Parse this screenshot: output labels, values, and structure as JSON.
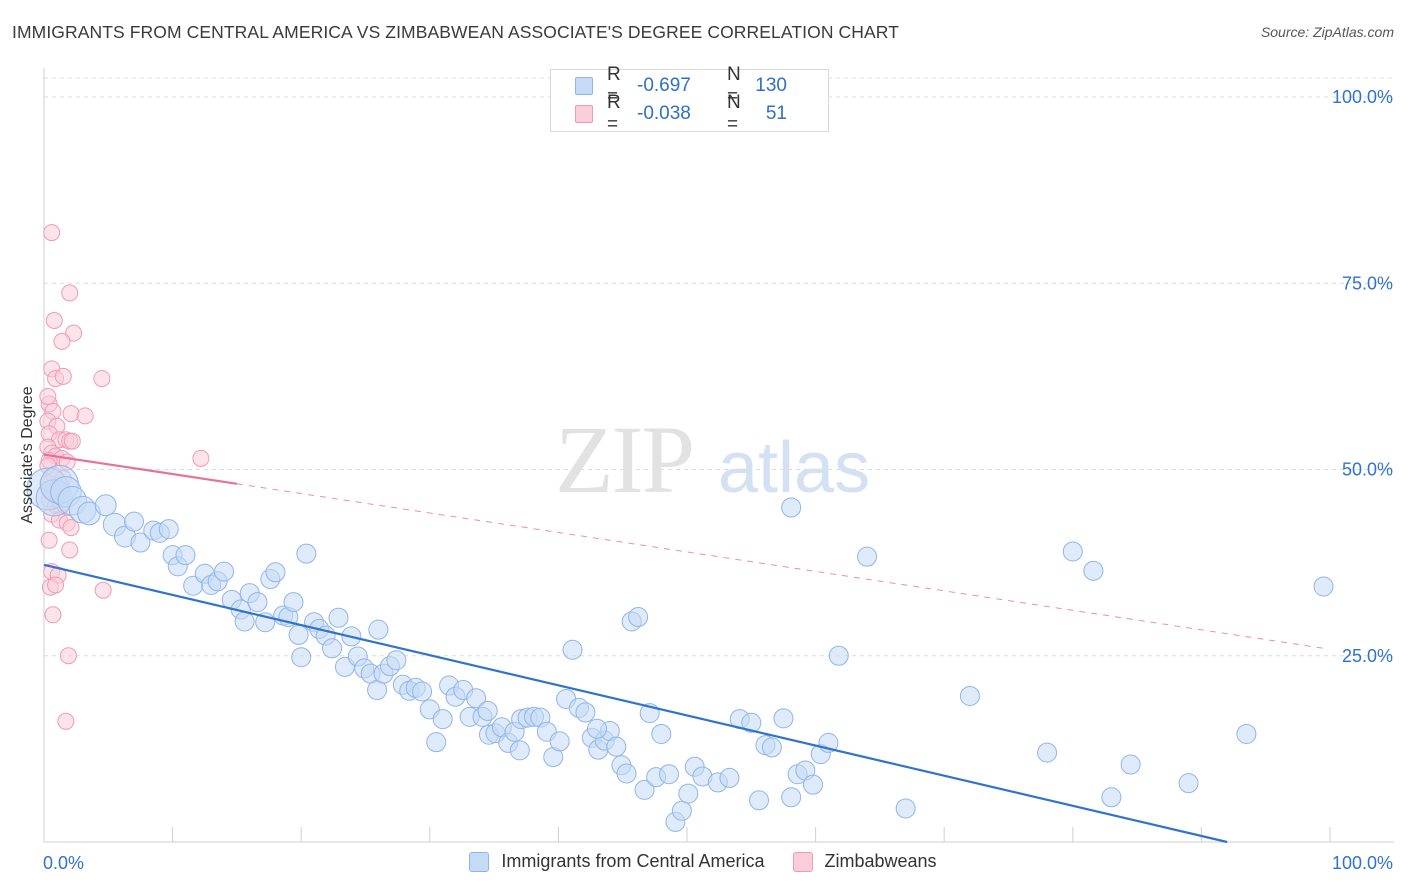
{
  "title": "IMMIGRANTS FROM CENTRAL AMERICA VS ZIMBABWEAN ASSOCIATE'S DEGREE CORRELATION CHART",
  "source": "Source: ZipAtlas.com",
  "watermark": {
    "zip": "ZIP",
    "atlas": "atlas"
  },
  "legend_top": [
    {
      "r_label": "R =",
      "r_value": "-0.697",
      "n_label": "N =",
      "n_value": "130",
      "color": "#8fb6e8",
      "fill": "#c5daf5"
    },
    {
      "r_label": "R =",
      "r_value": "-0.038",
      "n_label": "N =",
      "n_value": "51",
      "color": "#ef9ab6",
      "fill": "#f9cdd9"
    }
  ],
  "legend_bottom": [
    {
      "label": "Immigrants from Central America",
      "color": "#8fb6e8",
      "fill": "#c5daf5"
    },
    {
      "label": "Zimbabweans",
      "color": "#ef9ab6",
      "fill": "#f9cdd9"
    }
  ],
  "chart_data": {
    "type": "scatter",
    "title": "IMMIGRANTS FROM CENTRAL AMERICA VS ZIMBABWEAN ASSOCIATE'S DEGREE CORRELATION CHART",
    "xlabel": "",
    "ylabel": "Associate's Degree",
    "xlim": [
      0,
      1
    ],
    "ylim": [
      0,
      1
    ],
    "x_tick_labels": [
      {
        "value": 0,
        "label": "0.0%"
      },
      {
        "value": 1,
        "label": "100.0%"
      }
    ],
    "y_tick_labels": [
      {
        "value": 0.25,
        "label": "25.0%"
      },
      {
        "value": 0.5,
        "label": "50.0%"
      },
      {
        "value": 0.75,
        "label": "75.0%"
      },
      {
        "value": 1.0,
        "label": "100.0%"
      }
    ],
    "grid": true,
    "colors": {
      "blue_stroke": "#8fb6e8",
      "blue_fill": "#c5daf5",
      "blue_line": "#2f72d0",
      "pink_stroke": "#ef9ab6",
      "pink_fill": "#f9cdd9",
      "pink_line": "#e8709a",
      "grid": "#dcdcdc",
      "axis_text": "#2f6fc6"
    },
    "series": [
      {
        "name": "Immigrants from Central America",
        "color": "#8fb6e8",
        "points": [
          [
            0.003,
            0.474,
            2.2
          ],
          [
            0.008,
            0.462,
            1.9
          ],
          [
            0.012,
            0.48,
            2.0
          ],
          [
            0.017,
            0.47,
            1.6
          ],
          [
            0.022,
            0.458,
            1.5
          ],
          [
            0.03,
            0.446,
            1.4
          ],
          [
            0.035,
            0.441,
            1.2
          ],
          [
            0.048,
            0.452,
            1.1
          ],
          [
            0.055,
            0.426,
            1.2
          ],
          [
            0.063,
            0.41,
            1.1
          ],
          [
            0.07,
            0.43,
            1.0
          ],
          [
            0.075,
            0.402,
            1.0
          ],
          [
            0.085,
            0.418,
            1.0
          ],
          [
            0.09,
            0.415,
            1.0
          ],
          [
            0.097,
            0.42,
            1.0
          ],
          [
            0.1,
            0.385,
            1.0
          ],
          [
            0.104,
            0.37,
            1.0
          ],
          [
            0.11,
            0.385,
            1.0
          ],
          [
            0.116,
            0.344,
            1.0
          ],
          [
            0.125,
            0.36,
            1.0
          ],
          [
            0.13,
            0.345,
            1.0
          ],
          [
            0.135,
            0.35,
            1.0
          ],
          [
            0.14,
            0.363,
            1.0
          ],
          [
            0.146,
            0.325,
            1.0
          ],
          [
            0.153,
            0.312,
            1.0
          ],
          [
            0.156,
            0.296,
            1.0
          ],
          [
            0.16,
            0.334,
            1.0
          ],
          [
            0.166,
            0.322,
            1.0
          ],
          [
            0.172,
            0.295,
            1.0
          ],
          [
            0.176,
            0.353,
            1.0
          ],
          [
            0.18,
            0.362,
            1.0
          ],
          [
            0.186,
            0.304,
            1.0
          ],
          [
            0.19,
            0.302,
            1.0
          ],
          [
            0.194,
            0.322,
            1.0
          ],
          [
            0.198,
            0.278,
            1.0
          ],
          [
            0.2,
            0.248,
            1.0
          ],
          [
            0.204,
            0.387,
            1.0
          ],
          [
            0.21,
            0.295,
            1.0
          ],
          [
            0.214,
            0.286,
            1.0
          ],
          [
            0.219,
            0.277,
            1.0
          ],
          [
            0.224,
            0.26,
            1.0
          ],
          [
            0.229,
            0.301,
            1.0
          ],
          [
            0.234,
            0.235,
            1.0
          ],
          [
            0.239,
            0.276,
            1.0
          ],
          [
            0.244,
            0.249,
            1.0
          ],
          [
            0.249,
            0.233,
            1.0
          ],
          [
            0.254,
            0.226,
            1.0
          ],
          [
            0.259,
            0.204,
            1.0
          ],
          [
            0.264,
            0.226,
            1.0
          ],
          [
            0.269,
            0.236,
            1.0
          ],
          [
            0.274,
            0.244,
            1.0
          ],
          [
            0.279,
            0.211,
            1.0
          ],
          [
            0.284,
            0.203,
            1.0
          ],
          [
            0.289,
            0.207,
            1.0
          ],
          [
            0.294,
            0.202,
            1.0
          ],
          [
            0.3,
            0.178,
            1.0
          ],
          [
            0.305,
            0.134,
            1.0
          ],
          [
            0.31,
            0.165,
            1.0
          ],
          [
            0.315,
            0.21,
            1.0
          ],
          [
            0.32,
            0.195,
            1.0
          ],
          [
            0.326,
            0.204,
            1.0
          ],
          [
            0.331,
            0.168,
            1.0
          ],
          [
            0.336,
            0.193,
            1.0
          ],
          [
            0.341,
            0.168,
            1.0
          ],
          [
            0.346,
            0.144,
            1.0
          ],
          [
            0.351,
            0.146,
            1.0
          ],
          [
            0.356,
            0.154,
            1.0
          ],
          [
            0.361,
            0.133,
            1.0
          ],
          [
            0.366,
            0.148,
            1.0
          ],
          [
            0.371,
            0.165,
            1.0
          ],
          [
            0.376,
            0.167,
            1.0
          ],
          [
            0.381,
            0.168,
            1.0
          ],
          [
            0.386,
            0.167,
            1.0
          ],
          [
            0.391,
            0.148,
            1.0
          ],
          [
            0.396,
            0.114,
            1.0
          ],
          [
            0.401,
            0.135,
            1.0
          ],
          [
            0.406,
            0.192,
            1.0
          ],
          [
            0.411,
            0.258,
            1.0
          ],
          [
            0.416,
            0.18,
            1.0
          ],
          [
            0.421,
            0.174,
            1.0
          ],
          [
            0.426,
            0.14,
            1.0
          ],
          [
            0.431,
            0.124,
            1.0
          ],
          [
            0.436,
            0.136,
            1.0
          ],
          [
            0.44,
            0.149,
            1.0
          ],
          [
            0.445,
            0.128,
            1.0
          ],
          [
            0.449,
            0.103,
            1.0
          ],
          [
            0.453,
            0.092,
            1.0
          ],
          [
            0.457,
            0.296,
            1.0
          ],
          [
            0.462,
            0.302,
            1.0
          ],
          [
            0.467,
            0.07,
            1.0
          ],
          [
            0.471,
            0.173,
            1.0
          ],
          [
            0.476,
            0.087,
            1.0
          ],
          [
            0.48,
            0.145,
            1.0
          ],
          [
            0.486,
            0.091,
            1.0
          ],
          [
            0.491,
            0.027,
            1.0
          ],
          [
            0.496,
            0.042,
            1.0
          ],
          [
            0.501,
            0.065,
            1.0
          ],
          [
            0.506,
            0.101,
            1.0
          ],
          [
            0.512,
            0.088,
            1.0
          ],
          [
            0.524,
            0.08,
            1.0
          ],
          [
            0.533,
            0.086,
            1.0
          ],
          [
            0.541,
            0.165,
            1.0
          ],
          [
            0.55,
            0.16,
            1.0
          ],
          [
            0.556,
            0.056,
            1.0
          ],
          [
            0.561,
            0.13,
            1.0
          ],
          [
            0.566,
            0.127,
            1.0
          ],
          [
            0.575,
            0.166,
            1.0
          ],
          [
            0.581,
            0.06,
            1.0
          ],
          [
            0.586,
            0.091,
            1.0
          ],
          [
            0.592,
            0.096,
            1.0
          ],
          [
            0.598,
            0.077,
            1.0
          ],
          [
            0.604,
            0.118,
            1.0
          ],
          [
            0.61,
            0.133,
            1.0
          ],
          [
            0.618,
            0.25,
            1.0
          ],
          [
            0.581,
            0.449,
            1.0
          ],
          [
            0.64,
            0.383,
            1.0
          ],
          [
            0.67,
            0.045,
            1.0
          ],
          [
            0.72,
            0.196,
            1.0
          ],
          [
            0.8,
            0.39,
            1.0
          ],
          [
            0.816,
            0.364,
            1.0
          ],
          [
            0.78,
            0.12,
            1.0
          ],
          [
            0.83,
            0.06,
            1.0
          ],
          [
            0.845,
            0.104,
            1.0
          ],
          [
            0.89,
            0.079,
            1.0
          ],
          [
            0.935,
            0.145,
            1.0
          ],
          [
            0.995,
            0.343,
            1.0
          ],
          [
            0.43,
            0.152,
            1.0
          ],
          [
            0.345,
            0.176,
            1.0
          ],
          [
            0.37,
            0.123,
            1.0
          ],
          [
            0.26,
            0.285,
            1.0
          ]
        ],
        "trend": {
          "x0": 0.0,
          "y0": 0.372,
          "x1": 0.92,
          "y1": 0.0,
          "x_solid_end": 0.92
        }
      },
      {
        "name": "Zimbabweans",
        "color": "#ef9ab6",
        "points": [
          [
            0.006,
            0.818
          ],
          [
            0.02,
            0.737
          ],
          [
            0.008,
            0.7
          ],
          [
            0.023,
            0.683
          ],
          [
            0.014,
            0.672
          ],
          [
            0.006,
            0.635
          ],
          [
            0.009,
            0.622
          ],
          [
            0.015,
            0.625
          ],
          [
            0.045,
            0.622
          ],
          [
            0.004,
            0.588
          ],
          [
            0.007,
            0.578
          ],
          [
            0.021,
            0.575
          ],
          [
            0.032,
            0.572
          ],
          [
            0.003,
            0.565
          ],
          [
            0.01,
            0.558
          ],
          [
            0.004,
            0.548
          ],
          [
            0.012,
            0.54
          ],
          [
            0.017,
            0.54
          ],
          [
            0.02,
            0.538
          ],
          [
            0.022,
            0.538
          ],
          [
            0.003,
            0.53
          ],
          [
            0.006,
            0.522
          ],
          [
            0.009,
            0.518
          ],
          [
            0.014,
            0.515
          ],
          [
            0.004,
            0.512
          ],
          [
            0.018,
            0.51
          ],
          [
            0.003,
            0.505
          ],
          [
            0.008,
            0.492
          ],
          [
            0.003,
            0.482
          ],
          [
            0.007,
            0.472
          ],
          [
            0.01,
            0.468
          ],
          [
            0.004,
            0.46
          ],
          [
            0.009,
            0.452
          ],
          [
            0.013,
            0.45
          ],
          [
            0.006,
            0.44
          ],
          [
            0.012,
            0.432
          ],
          [
            0.018,
            0.428
          ],
          [
            0.004,
            0.405
          ],
          [
            0.02,
            0.392
          ],
          [
            0.006,
            0.363
          ],
          [
            0.011,
            0.358
          ],
          [
            0.005,
            0.342
          ],
          [
            0.009,
            0.345
          ],
          [
            0.046,
            0.338
          ],
          [
            0.007,
            0.305
          ],
          [
            0.019,
            0.25
          ],
          [
            0.017,
            0.162
          ],
          [
            0.122,
            0.515
          ],
          [
            0.021,
            0.422
          ],
          [
            0.003,
            0.598
          ],
          [
            0.015,
            0.488
          ]
        ],
        "trend": {
          "x0": 0.0,
          "y0": 0.52,
          "x1": 0.995,
          "y1": 0.26,
          "x_solid_end": 0.15
        }
      }
    ]
  }
}
